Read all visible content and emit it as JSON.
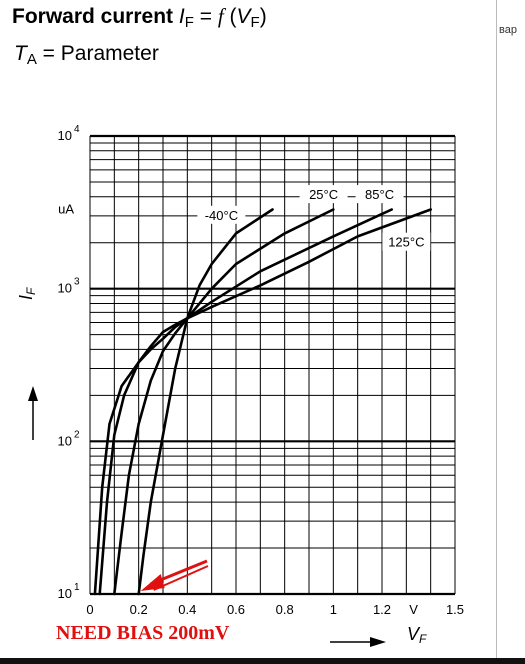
{
  "header": {
    "title_bold": "Forward current",
    "title_var": "I",
    "title_var_sub": "F",
    "title_eq": " = ",
    "title_func": "f",
    "title_paren_open": " (",
    "title_arg": "V",
    "title_arg_sub": "F",
    "title_paren_close": ")",
    "subtitle_var": "T",
    "subtitle_sub": "A",
    "subtitle_rest": " = Parameter"
  },
  "side_text": "вар",
  "annotation": {
    "text": "NEED BIAS 200mV",
    "color": "#e01010",
    "arrow_target_x": 0.2,
    "arrow_target_y": 10
  },
  "chart_data": {
    "type": "line",
    "title": "Forward current IF = f (VF)",
    "subtitle": "TA = Parameter",
    "x_scale": "linear",
    "y_scale": "log",
    "xlim": [
      0,
      1.5
    ],
    "ylim": [
      10,
      10000
    ],
    "x_ticks": [
      0,
      0.2,
      0.4,
      0.6,
      0.8,
      1,
      1.2,
      1.5
    ],
    "x_tick_labels": [
      "0",
      "0.2",
      "0.4",
      "0.6",
      "0.8",
      "1",
      "1.2",
      "1.5"
    ],
    "x_unit": "V",
    "y_ticks": [
      10,
      100,
      1000,
      10000
    ],
    "y_tick_base": "10",
    "y_tick_exponents": [
      "1",
      "2",
      "3",
      "4"
    ],
    "y_unit": "uA",
    "ylabel_var": "I",
    "ylabel_sub": "F",
    "xlabel_var": "V",
    "xlabel_sub": "F",
    "grid": true,
    "series": [
      {
        "name": "-40°C",
        "x": [
          0.2,
          0.22,
          0.25,
          0.3,
          0.35,
          0.4,
          0.45,
          0.5,
          0.6,
          0.75
        ],
        "y": [
          10,
          18,
          40,
          110,
          300,
          640,
          1050,
          1450,
          2300,
          3300
        ]
      },
      {
        "name": "25°C",
        "x": [
          0.1,
          0.13,
          0.16,
          0.2,
          0.25,
          0.3,
          0.35,
          0.4,
          0.5,
          0.6,
          0.8,
          1.0
        ],
        "y": [
          10,
          25,
          60,
          130,
          250,
          390,
          510,
          640,
          1000,
          1450,
          2300,
          3300
        ]
      },
      {
        "name": "85°C",
        "x": [
          0.04,
          0.07,
          0.1,
          0.14,
          0.2,
          0.25,
          0.3,
          0.35,
          0.4,
          0.5,
          0.7,
          1.0,
          1.24
        ],
        "y": [
          10,
          40,
          110,
          200,
          330,
          420,
          520,
          580,
          640,
          820,
          1300,
          2200,
          3300
        ]
      },
      {
        "name": "125°C",
        "x": [
          0.02,
          0.05,
          0.08,
          0.13,
          0.2,
          0.25,
          0.3,
          0.35,
          0.4,
          0.5,
          0.7,
          0.9,
          1.1,
          1.4
        ],
        "y": [
          10,
          50,
          130,
          230,
          330,
          400,
          470,
          560,
          640,
          760,
          1050,
          1500,
          2200,
          3300
        ]
      }
    ]
  }
}
